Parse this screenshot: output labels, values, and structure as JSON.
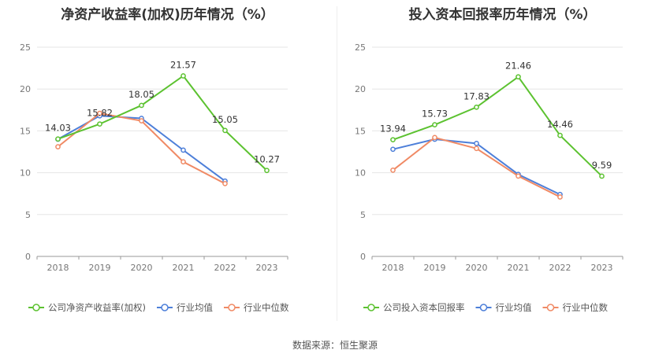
{
  "source_text": "数据来源：恒生聚源",
  "chart_data": [
    {
      "type": "line",
      "title": "净资产收益率(加权)历年情况（%）",
      "x": [
        "2018",
        "2019",
        "2020",
        "2021",
        "2022",
        "2023"
      ],
      "ylim": [
        0,
        25
      ],
      "yticks": [
        0,
        5,
        10,
        15,
        20,
        25
      ],
      "grid": true,
      "legend_position": "bottom",
      "series": [
        {
          "name": "公司净资产收益率(加权)",
          "color": "#5cc230",
          "labels": true,
          "values": [
            14.03,
            15.82,
            18.05,
            21.57,
            15.05,
            10.27
          ]
        },
        {
          "name": "行业均值",
          "color": "#4d7fd9",
          "labels": false,
          "values": [
            14.0,
            16.8,
            16.5,
            12.7,
            9.0,
            null
          ]
        },
        {
          "name": "行业中位数",
          "color": "#f08a65",
          "labels": false,
          "values": [
            13.1,
            17.1,
            16.2,
            11.3,
            8.7,
            null
          ]
        }
      ]
    },
    {
      "type": "line",
      "title": "投入资本回报率历年情况（%）",
      "x": [
        "2018",
        "2019",
        "2020",
        "2021",
        "2022",
        "2023"
      ],
      "ylim": [
        0,
        25
      ],
      "yticks": [
        0,
        5,
        10,
        15,
        20,
        25
      ],
      "grid": true,
      "legend_position": "bottom",
      "series": [
        {
          "name": "公司投入资本回报率",
          "color": "#5cc230",
          "labels": true,
          "values": [
            13.94,
            15.73,
            17.83,
            21.46,
            14.46,
            9.59
          ]
        },
        {
          "name": "行业均值",
          "color": "#4d7fd9",
          "labels": false,
          "values": [
            12.8,
            14.0,
            13.5,
            9.8,
            7.4,
            null
          ]
        },
        {
          "name": "行业中位数",
          "color": "#f08a65",
          "labels": false,
          "values": [
            10.3,
            14.2,
            12.9,
            9.6,
            7.1,
            null
          ]
        }
      ]
    }
  ]
}
